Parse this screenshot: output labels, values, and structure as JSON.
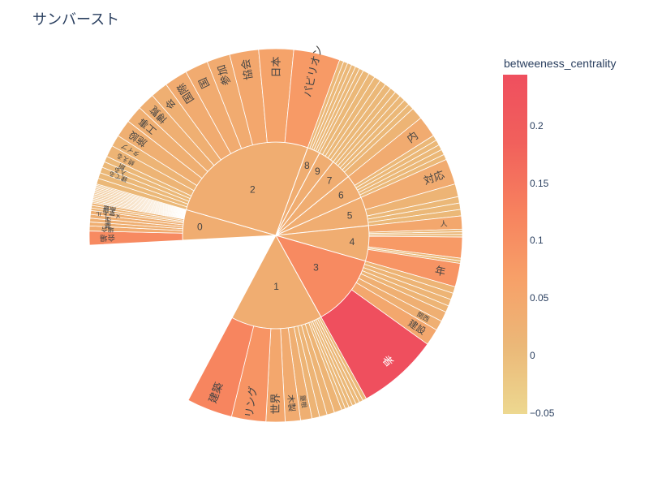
{
  "chart_data": {
    "type": "sunburst",
    "title": "サンバースト",
    "colorbar": {
      "title": "betweeness_centrality",
      "ticks": [
        "0.2",
        "0.15",
        "0.1",
        "0.05",
        "0",
        "−0.05"
      ],
      "tick_values": [
        0.2,
        0.15,
        0.1,
        0.05,
        0,
        -0.05
      ],
      "range": [
        -0.05,
        0.245
      ],
      "colorscale": [
        "#edd890",
        "#ebb878",
        "#f7a068",
        "#f7815e",
        "#f1605c",
        "#ef4f5e"
      ]
    },
    "groups": [
      {
        "label": "0",
        "value": 0.036,
        "children": [
          {
            "label": "会場",
            "value": 0.11
          },
          {
            "label": "場合",
            "value": 0.04
          },
          {
            "label": "夢",
            "value": 0.03
          },
          {
            "label": "市",
            "value": 0.03
          },
          {
            "label": "決",
            "value": 0.03
          },
          {
            "label": "メートル",
            "value": 0.03
          },
          {
            "label": "富士",
            "value": 0.02
          },
          {
            "label": "入場",
            "value": 0.02
          },
          {
            "label": "開幕",
            "value": 0.02
          },
          {
            "label": "",
            "value": 0.01
          },
          {
            "label": "",
            "value": 0.01
          },
          {
            "label": "",
            "value": 0.01
          },
          {
            "label": "",
            "value": 0.01
          },
          {
            "label": "",
            "value": 0.01
          },
          {
            "label": "",
            "value": 0.01
          },
          {
            "label": "",
            "value": 0.01
          },
          {
            "label": "",
            "value": 0.01
          },
          {
            "label": "",
            "value": 0.01
          },
          {
            "label": "",
            "value": 0.01
          },
          {
            "label": "",
            "value": 0.01
          },
          {
            "label": "",
            "value": 0.01
          },
          {
            "label": "",
            "value": 0.01
          },
          {
            "label": "",
            "value": 0.01
          },
          {
            "label": "",
            "value": 0.01
          }
        ]
      },
      {
        "label": "2",
        "value": 0.036,
        "children": [
          {
            "label": "",
            "value": 0.01
          },
          {
            "label": "",
            "value": 0.01
          },
          {
            "label": "建てる",
            "value": 0.01
          },
          {
            "label": "入る",
            "value": 0.01
          },
          {
            "label": "期",
            "value": 0.01
          },
          {
            "label": "終える",
            "value": 0.02
          },
          {
            "label": "タイプ",
            "value": 0.02
          },
          {
            "label": "施設",
            "value": 0.03
          },
          {
            "label": "工事",
            "value": 0.03
          },
          {
            "label": "博覧",
            "value": 0.03
          },
          {
            "label": "会",
            "value": 0.03
          },
          {
            "label": "国際",
            "value": 0.04
          },
          {
            "label": "国",
            "value": 0.04
          },
          {
            "label": "参加",
            "value": 0.04
          },
          {
            "label": "協会",
            "value": 0.05
          },
          {
            "label": "日本",
            "value": 0.06
          },
          {
            "label": "パビリオン",
            "value": 0.08
          }
        ]
      },
      {
        "label": "8",
        "value": 0.036,
        "children": [
          {
            "label": "",
            "value": 0.01
          },
          {
            "label": "",
            "value": 0.01
          },
          {
            "label": "",
            "value": 0.01
          },
          {
            "label": "",
            "value": 0.01
          },
          {
            "label": "",
            "value": 0.01
          },
          {
            "label": "",
            "value": 0.01
          }
        ]
      },
      {
        "label": "9",
        "value": 0.036,
        "children": [
          {
            "label": "",
            "value": 0.01
          },
          {
            "label": "",
            "value": 0.01
          },
          {
            "label": "",
            "value": 0.01
          },
          {
            "label": "",
            "value": 0.01
          },
          {
            "label": "",
            "value": 0.01
          }
        ]
      },
      {
        "label": "7",
        "value": 0.036,
        "children": [
          {
            "label": "",
            "value": 0.01
          },
          {
            "label": "",
            "value": 0.01
          },
          {
            "label": "",
            "value": 0.01
          },
          {
            "label": "",
            "value": 0.01
          },
          {
            "label": "",
            "value": 0.01
          },
          {
            "label": "",
            "value": 0.02
          }
        ]
      },
      {
        "label": "6",
        "value": 0.036,
        "children": [
          {
            "label": "内",
            "value": 0.04
          },
          {
            "label": "",
            "value": 0.01
          },
          {
            "label": "",
            "value": 0.01
          },
          {
            "label": "",
            "value": 0.01
          },
          {
            "label": "",
            "value": 0.01
          },
          {
            "label": "",
            "value": 0.01
          }
        ]
      },
      {
        "label": "5",
        "value": 0.036,
        "children": [
          {
            "label": "対応",
            "value": 0.04
          },
          {
            "label": "",
            "value": 0.02
          },
          {
            "label": "",
            "value": 0.01
          },
          {
            "label": "",
            "value": 0.01
          },
          {
            "label": "",
            "value": 0.01
          }
        ]
      },
      {
        "label": "4",
        "value": 0.036,
        "children": [
          {
            "label": "人",
            "value": 0.05
          },
          {
            "label": "",
            "value": 0.01
          },
          {
            "label": "",
            "value": 0.01
          },
          {
            "label": "",
            "value": 0.01
          },
          {
            "label": "",
            "value": 0.08
          },
          {
            "label": "",
            "value": 0.01
          },
          {
            "label": "",
            "value": 0.01
          },
          {
            "label": "年",
            "value": 0.09
          }
        ]
      },
      {
        "label": "3",
        "value": 0.11,
        "children": [
          {
            "label": "",
            "value": 0.02
          },
          {
            "label": "",
            "value": 0.02
          },
          {
            "label": "",
            "value": 0.02
          },
          {
            "label": "",
            "value": 0.02
          },
          {
            "label": "",
            "value": 0.03
          },
          {
            "label": "関西",
            "value": 0.03
          },
          {
            "label": "建設",
            "value": 0.05
          },
          {
            "label": "者",
            "value": 0.245
          }
        ]
      },
      {
        "label": "1",
        "value": 0.036,
        "children": [
          {
            "label": "",
            "value": 0.01
          },
          {
            "label": "",
            "value": 0.01
          },
          {
            "label": "",
            "value": 0.01
          },
          {
            "label": "",
            "value": 0.01
          },
          {
            "label": "",
            "value": 0.01
          },
          {
            "label": "",
            "value": 0.01
          },
          {
            "label": "",
            "value": 0.01
          },
          {
            "label": "",
            "value": 0.02
          },
          {
            "label": "",
            "value": 0.02
          },
          {
            "label": "",
            "value": 0.02
          },
          {
            "label": "",
            "value": 0.02
          },
          {
            "label": "屋根",
            "value": 0.03
          },
          {
            "label": "木製",
            "value": 0.04
          },
          {
            "label": "世界",
            "value": 0.05
          },
          {
            "label": "リング",
            "value": 0.09
          },
          {
            "label": "建築",
            "value": 0.12
          }
        ]
      }
    ]
  }
}
